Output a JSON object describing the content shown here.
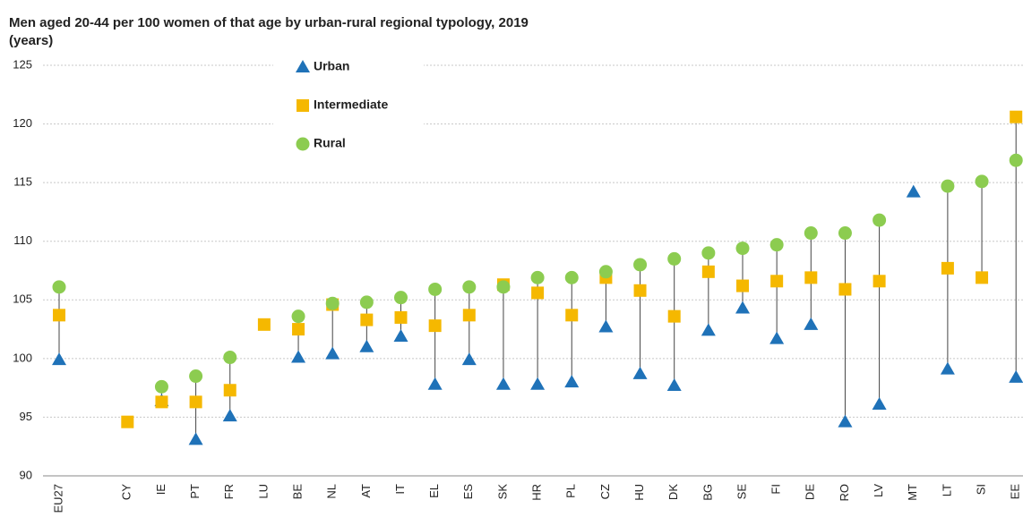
{
  "chart_data": {
    "type": "dot-range",
    "title": "Men aged 20-44 per 100 women of that age by urban-rural regional typology, 2019",
    "subtitle": "(years)",
    "categories": [
      "EU27",
      null,
      "CY",
      "IE",
      "PT",
      "FR",
      "LU",
      "BE",
      "NL",
      "AT",
      "IT",
      "EL",
      "ES",
      "SK",
      "HR",
      "PL",
      "CZ",
      "HU",
      "DK",
      "BG",
      "SE",
      "FI",
      "DE",
      "RO",
      "LV",
      "MT",
      "LT",
      "SI",
      "EE"
    ],
    "series": [
      {
        "name": "Urban",
        "color": "#1f72b8",
        "marker": "triangle",
        "values": [
          99.9,
          null,
          null,
          96.4,
          93.1,
          95.1,
          null,
          100.1,
          100.4,
          101.0,
          101.9,
          97.8,
          99.9,
          97.8,
          97.8,
          98.0,
          102.7,
          98.7,
          97.7,
          102.4,
          104.3,
          101.7,
          102.9,
          94.6,
          96.1,
          114.2,
          99.1,
          null,
          98.4
        ]
      },
      {
        "name": "Intermediate",
        "color": "#f5b800",
        "marker": "square",
        "values": [
          103.7,
          null,
          94.6,
          96.3,
          96.3,
          97.3,
          102.9,
          102.5,
          104.6,
          103.3,
          103.5,
          102.8,
          103.7,
          106.3,
          105.6,
          103.7,
          106.9,
          105.8,
          103.6,
          107.4,
          106.2,
          106.6,
          106.9,
          105.9,
          106.6,
          null,
          107.7,
          106.9,
          120.6
        ]
      },
      {
        "name": "Rural",
        "color": "#8ccc50",
        "marker": "circle",
        "values": [
          106.1,
          null,
          null,
          97.6,
          98.5,
          100.1,
          null,
          103.6,
          104.7,
          104.8,
          105.2,
          105.9,
          106.1,
          106.1,
          106.9,
          106.9,
          107.4,
          108.0,
          108.5,
          109.0,
          109.4,
          109.7,
          110.7,
          110.7,
          111.8,
          null,
          114.7,
          115.1,
          116.9
        ]
      }
    ],
    "ylim": [
      90,
      125
    ],
    "yticks": [
      90,
      95,
      100,
      105,
      110,
      115,
      120,
      125
    ],
    "grid": true,
    "legend": "top-left"
  }
}
